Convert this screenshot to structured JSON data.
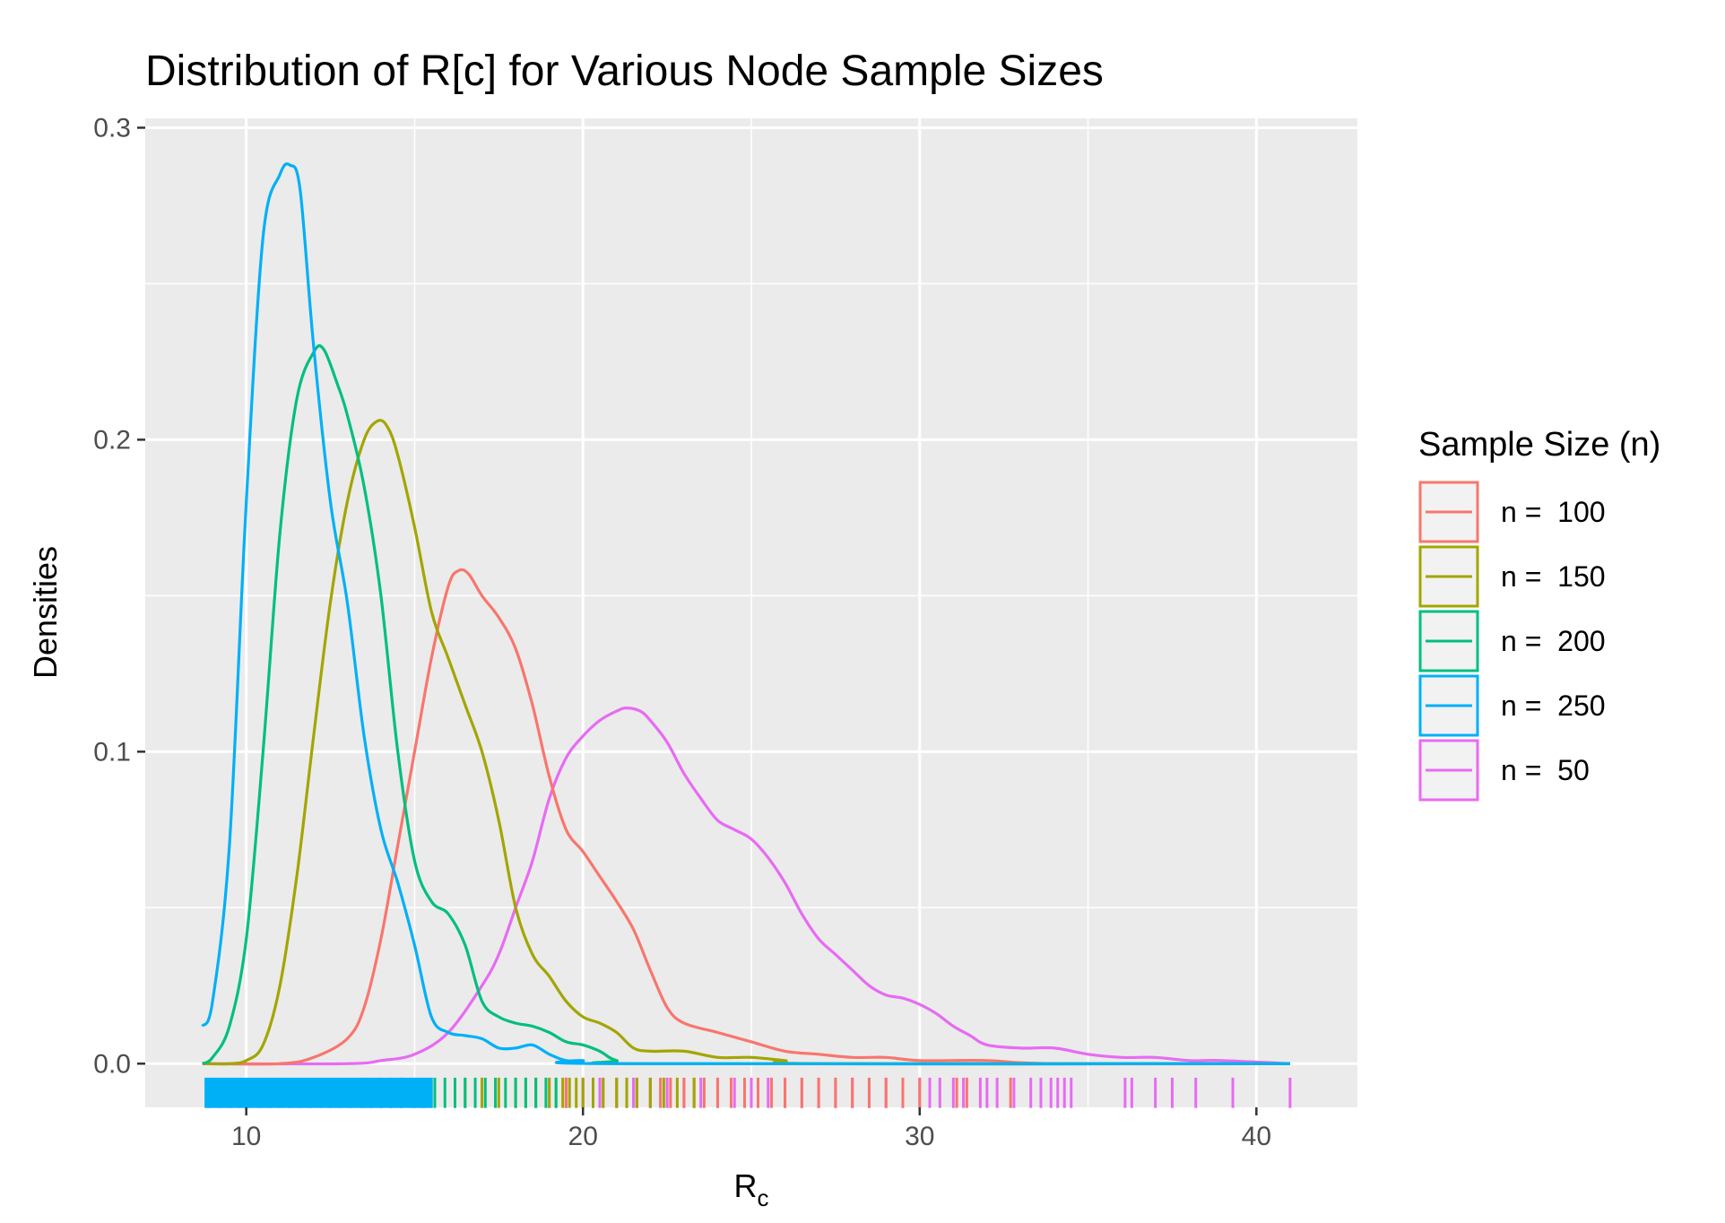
{
  "chart_data": {
    "type": "line",
    "title": "Distribution of R[c] for Various Node Sample Sizes",
    "xlabel": {
      "main": "R",
      "sub": "c"
    },
    "ylabel": "Densities",
    "xlim": [
      7,
      43
    ],
    "ylim": [
      -0.014,
      0.303
    ],
    "x_ticks": [
      10,
      20,
      30,
      40
    ],
    "x_tick_labels": [
      "10",
      "20",
      "30",
      "40"
    ],
    "x_minor_ticks": [
      15,
      25,
      35
    ],
    "y_ticks": [
      0,
      0.1,
      0.2,
      0.3
    ],
    "y_tick_labels": [
      "0.0",
      "0.1",
      "0.2",
      "0.3"
    ],
    "y_minor_ticks": [
      0.05,
      0.15,
      0.25
    ],
    "grid": true,
    "legend": {
      "title": "Sample Size (n)",
      "position": "right"
    },
    "series": [
      {
        "name": "n =  100",
        "color": "#F8766D",
        "points": [
          [
            8.7,
            0
          ],
          [
            11,
            0
          ],
          [
            12,
            0.002
          ],
          [
            13,
            0.008
          ],
          [
            13.5,
            0.018
          ],
          [
            14,
            0.04
          ],
          [
            14.5,
            0.07
          ],
          [
            15,
            0.1
          ],
          [
            15.5,
            0.13
          ],
          [
            16,
            0.153
          ],
          [
            16.3,
            0.158
          ],
          [
            16.6,
            0.157
          ],
          [
            17,
            0.15
          ],
          [
            17.5,
            0.143
          ],
          [
            18,
            0.133
          ],
          [
            18.5,
            0.115
          ],
          [
            19,
            0.092
          ],
          [
            19.5,
            0.075
          ],
          [
            20,
            0.068
          ],
          [
            20.5,
            0.06
          ],
          [
            21,
            0.052
          ],
          [
            21.5,
            0.043
          ],
          [
            22,
            0.03
          ],
          [
            22.5,
            0.018
          ],
          [
            23,
            0.013
          ],
          [
            24,
            0.01
          ],
          [
            25,
            0.007
          ],
          [
            26,
            0.004
          ],
          [
            27,
            0.003
          ],
          [
            28,
            0.002
          ],
          [
            29,
            0.002
          ],
          [
            30,
            0.001
          ],
          [
            32,
            0.001
          ],
          [
            34,
            0
          ],
          [
            41,
            0
          ]
        ]
      },
      {
        "name": "n =  150",
        "color": "#A3A500",
        "points": [
          [
            8.7,
            0
          ],
          [
            9.5,
            0
          ],
          [
            10,
            0.001
          ],
          [
            10.5,
            0.006
          ],
          [
            11,
            0.025
          ],
          [
            11.5,
            0.06
          ],
          [
            12,
            0.105
          ],
          [
            12.5,
            0.148
          ],
          [
            13,
            0.18
          ],
          [
            13.5,
            0.2
          ],
          [
            13.9,
            0.206
          ],
          [
            14.2,
            0.204
          ],
          [
            14.5,
            0.195
          ],
          [
            15,
            0.172
          ],
          [
            15.5,
            0.145
          ],
          [
            16,
            0.13
          ],
          [
            16.5,
            0.115
          ],
          [
            17,
            0.1
          ],
          [
            17.5,
            0.078
          ],
          [
            18,
            0.05
          ],
          [
            18.5,
            0.035
          ],
          [
            19,
            0.028
          ],
          [
            19.5,
            0.02
          ],
          [
            20,
            0.015
          ],
          [
            20.5,
            0.013
          ],
          [
            21,
            0.01
          ],
          [
            21.5,
            0.005
          ],
          [
            22,
            0.004
          ],
          [
            23,
            0.004
          ],
          [
            24,
            0.002
          ],
          [
            25,
            0.002
          ],
          [
            26,
            0.001
          ],
          [
            27,
            0
          ],
          [
            41,
            0
          ]
        ]
      },
      {
        "name": "n =  200",
        "color": "#00BF7D",
        "points": [
          [
            8.7,
            0
          ],
          [
            9,
            0.002
          ],
          [
            9.5,
            0.012
          ],
          [
            10,
            0.04
          ],
          [
            10.5,
            0.1
          ],
          [
            11,
            0.17
          ],
          [
            11.5,
            0.213
          ],
          [
            12,
            0.228
          ],
          [
            12.3,
            0.229
          ],
          [
            12.7,
            0.218
          ],
          [
            13,
            0.208
          ],
          [
            13.5,
            0.185
          ],
          [
            14,
            0.15
          ],
          [
            14.5,
            0.1
          ],
          [
            15,
            0.065
          ],
          [
            15.5,
            0.052
          ],
          [
            16,
            0.048
          ],
          [
            16.5,
            0.038
          ],
          [
            17,
            0.02
          ],
          [
            17.5,
            0.015
          ],
          [
            18,
            0.013
          ],
          [
            18.5,
            0.012
          ],
          [
            19,
            0.01
          ],
          [
            19.5,
            0.007
          ],
          [
            20,
            0.006
          ],
          [
            20.5,
            0.004
          ],
          [
            21,
            0.001
          ],
          [
            22,
            0
          ],
          [
            41,
            0
          ]
        ]
      },
      {
        "name": "n =  250",
        "color": "#00B0F6",
        "points": [
          [
            8.7,
            0.012
          ],
          [
            9,
            0.02
          ],
          [
            9.5,
            0.07
          ],
          [
            10,
            0.18
          ],
          [
            10.5,
            0.265
          ],
          [
            11,
            0.285
          ],
          [
            11.3,
            0.288
          ],
          [
            11.6,
            0.28
          ],
          [
            12,
            0.23
          ],
          [
            12.5,
            0.18
          ],
          [
            13,
            0.148
          ],
          [
            13.5,
            0.105
          ],
          [
            14,
            0.075
          ],
          [
            14.5,
            0.058
          ],
          [
            15,
            0.038
          ],
          [
            15.5,
            0.015
          ],
          [
            16,
            0.01
          ],
          [
            16.5,
            0.009
          ],
          [
            17,
            0.008
          ],
          [
            17.5,
            0.005
          ],
          [
            18,
            0.005
          ],
          [
            18.5,
            0.006
          ],
          [
            19,
            0.003
          ],
          [
            19.5,
            0.001
          ],
          [
            20,
            0.001
          ],
          [
            21,
            0
          ],
          [
            41,
            0
          ]
        ]
      },
      {
        "name": "n =  50",
        "color": "#E76BF3",
        "points": [
          [
            8.7,
            0
          ],
          [
            13,
            0
          ],
          [
            14,
            0.001
          ],
          [
            15,
            0.003
          ],
          [
            16,
            0.01
          ],
          [
            17,
            0.025
          ],
          [
            17.5,
            0.035
          ],
          [
            18,
            0.05
          ],
          [
            18.5,
            0.065
          ],
          [
            19,
            0.085
          ],
          [
            19.5,
            0.098
          ],
          [
            20,
            0.105
          ],
          [
            20.5,
            0.11
          ],
          [
            21,
            0.113
          ],
          [
            21.3,
            0.114
          ],
          [
            21.7,
            0.113
          ],
          [
            22,
            0.11
          ],
          [
            22.5,
            0.103
          ],
          [
            23,
            0.093
          ],
          [
            23.5,
            0.085
          ],
          [
            24,
            0.078
          ],
          [
            24.5,
            0.075
          ],
          [
            25,
            0.072
          ],
          [
            25.5,
            0.066
          ],
          [
            26,
            0.058
          ],
          [
            26.5,
            0.048
          ],
          [
            27,
            0.04
          ],
          [
            27.5,
            0.035
          ],
          [
            28,
            0.03
          ],
          [
            28.5,
            0.025
          ],
          [
            29,
            0.022
          ],
          [
            29.5,
            0.021
          ],
          [
            30,
            0.019
          ],
          [
            30.5,
            0.016
          ],
          [
            31,
            0.012
          ],
          [
            31.5,
            0.009
          ],
          [
            32,
            0.006
          ],
          [
            33,
            0.005
          ],
          [
            34,
            0.005
          ],
          [
            35,
            0.003
          ],
          [
            36,
            0.002
          ],
          [
            37,
            0.002
          ],
          [
            38,
            0.001
          ],
          [
            39,
            0.001
          ],
          [
            41,
            0
          ]
        ]
      }
    ],
    "rugs": [
      {
        "name": "n =  50",
        "color": "#E76BF3",
        "x": [
          19,
          19.5,
          20,
          20.5,
          21,
          21.5,
          22,
          22.5,
          23,
          23.5,
          24,
          24.5,
          25,
          25.5,
          26,
          26.5,
          27,
          27.5,
          28,
          28.5,
          29,
          29.5,
          30,
          30.3,
          30.6,
          31,
          31.3,
          31.8,
          32,
          32.3,
          32.8,
          33.3,
          33.6,
          33.9,
          34.1,
          34.3,
          34.5,
          36.1,
          36.3,
          37,
          37.5,
          38.2,
          39.3,
          41
        ]
      },
      {
        "name": "n =  100",
        "color": "#F8766D",
        "x": [
          19.5,
          20,
          20.3,
          20.6,
          21,
          21.3,
          21.6,
          22,
          22.3,
          22.6,
          23,
          23.3,
          23.6,
          24,
          24.4,
          24.8,
          25.2,
          25.6,
          26,
          26.5,
          27,
          27.5,
          28,
          28.5,
          29,
          29.5,
          30,
          31.1,
          31.4,
          32.7
        ]
      },
      {
        "name": "n =  150",
        "color": "#A3A500",
        "x": [
          16.5,
          17,
          17.5,
          18,
          18.3,
          18.6,
          19,
          19.2,
          19.4,
          19.6,
          19.8,
          20,
          20.3,
          20.6,
          21,
          21.3,
          21.6,
          22,
          22.4,
          22.8,
          23.3
        ]
      },
      {
        "name": "n =  200",
        "color": "#00BF7D",
        "x": [
          13.5,
          14,
          14.3,
          14.6,
          15,
          15.3,
          15.6,
          15.9,
          16.2,
          16.5,
          16.8,
          17.1,
          17.4,
          17.7,
          18,
          18.3,
          18.6,
          18.9,
          19.2
        ]
      },
      {
        "name": "n =  250",
        "color": "#00B0F6",
        "x": [
          8.8,
          8.9,
          9.2,
          9.5,
          9.8,
          10.1,
          10.4,
          10.7,
          11,
          11.3,
          11.6,
          11.9,
          12.2,
          12.5,
          12.8,
          13.1,
          13.4,
          13.7,
          14,
          14.3,
          14.6,
          14.9,
          15.2,
          15.5
        ]
      }
    ]
  }
}
